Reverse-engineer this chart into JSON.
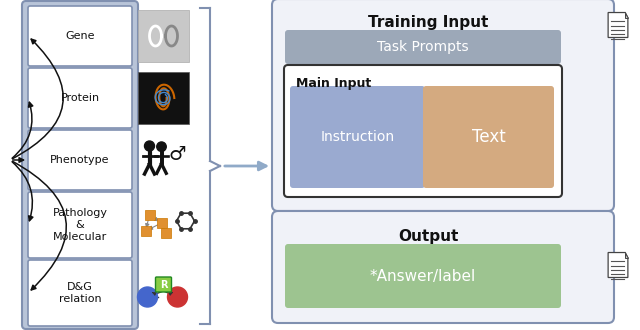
{
  "fig_width": 6.4,
  "fig_height": 3.3,
  "dpi": 100,
  "bg_color": "#ffffff",
  "left_panel_items": [
    "Gene",
    "Protein",
    "Phenotype",
    "Pathology\n&\nMolecular",
    "D&G\nrelation"
  ],
  "left_panel_box_color": "#b8c4d8",
  "left_panel_border_color": "#8090b0",
  "task_prompts_color": "#9ca8b8",
  "task_prompts_text": "Task Prompts",
  "task_prompts_text_color": "#ffffff",
  "main_input_label": "Main Input",
  "main_input_border": "#333333",
  "instruction_color": "#9aaad0",
  "instruction_text": "Instruction",
  "text_box_color": "#d4aa80",
  "text_box_text": "Text",
  "output_box_border": "#8090b0",
  "output_label": "Output",
  "answer_label_color": "#9dc490",
  "answer_label_text": "*Answer/label",
  "answer_text_color": "#ffffff",
  "training_input_label": "Training Input",
  "arrow_color": "#90aac8",
  "bracket_color": "#8090b0",
  "doc_line_color": "#555555"
}
